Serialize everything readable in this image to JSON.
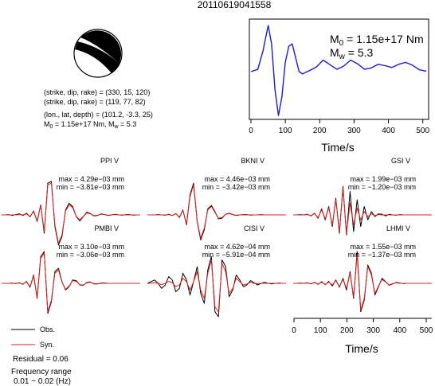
{
  "title": "20110619041558",
  "source": {
    "m0_label": "M",
    "m0_sub": "0",
    "m0_value": " = 1.15e+17 Nm",
    "mw_label": "M",
    "mw_sub": "w",
    "mw_value": " = 5.3",
    "xlabel": "Time/s",
    "xticks": [
      "0",
      "100",
      "200",
      "300",
      "400",
      "500"
    ]
  },
  "mechanism": {
    "line1": "(strike, dip, rake) = (330, 15, 120)",
    "line2": "(strike, dip, rake) = (119, 77, 82)",
    "line3": "(lon., lat, depth) = (101.2, -3.3, 25)",
    "line4_m0": "M",
    "line4_m0_sub": "0",
    "line4_rest": " = 1.15e+17 Nm, M",
    "line4_mw_sub": "w",
    "line4_end": " = 5.3"
  },
  "waveform_xlabel": "Time/s",
  "waveform_xticks": [
    "0",
    "100",
    "200",
    "300",
    "400",
    "500"
  ],
  "legend": {
    "obs": "Obs.",
    "syn": "Syn.",
    "residual": "Residual = 0.06",
    "freq_title": "Frequency range",
    "freq_range": "0.01 − 0.02 (Hz)"
  },
  "colors": {
    "source": "#1a1adb",
    "observed": "#000000",
    "synthetic": "#e02020"
  },
  "chart_data": [
    {
      "type": "line",
      "name": "source_time_function",
      "xlim": [
        0,
        510
      ],
      "x": [
        0,
        20,
        35,
        50,
        60,
        70,
        80,
        90,
        100,
        110,
        120,
        130,
        140,
        150,
        170,
        190,
        210,
        230,
        250,
        270,
        290,
        310,
        330,
        350,
        370,
        390,
        410,
        430,
        450,
        470,
        490,
        510
      ],
      "y": [
        0.0,
        0.05,
        0.45,
        1.0,
        0.6,
        -0.4,
        -0.95,
        -0.55,
        0.2,
        0.55,
        0.6,
        0.3,
        0.0,
        -0.05,
        0.02,
        0.1,
        0.25,
        0.15,
        0.05,
        0.12,
        0.25,
        0.17,
        0.05,
        0.08,
        0.16,
        0.13,
        0.09,
        0.16,
        0.2,
        0.14,
        0.04,
        0.01
      ]
    },
    {
      "type": "line",
      "stations": [
        {
          "name": "PPI V",
          "max": "max = 4.29e−03 mm",
          "min": "min = −3.81e−03 mm",
          "obs": [
            0,
            0,
            0.01,
            -0.02,
            0.01,
            0.03,
            -0.02,
            0.05,
            -0.06,
            0.12,
            -0.2,
            0.3,
            -0.55,
            0.95,
            1.0,
            -0.35,
            -0.9,
            -0.65,
            0.15,
            0.35,
            0.25,
            -0.05,
            -0.18,
            -0.05,
            0.08,
            0.04,
            -0.03,
            -0.02,
            0.03,
            0.01,
            -0.02,
            0,
            0.02,
            0,
            -0.01,
            0.01,
            0.01,
            -0.01,
            0,
            0
          ],
          "syn": [
            0,
            0,
            0,
            0,
            0,
            0.01,
            0,
            0.03,
            -0.05,
            0.1,
            -0.18,
            0.28,
            -0.5,
            0.9,
            0.95,
            -0.3,
            -0.85,
            -0.6,
            0.12,
            0.3,
            0.22,
            -0.04,
            -0.15,
            -0.04,
            0.06,
            0.03,
            -0.02,
            -0.01,
            0.02,
            0.01,
            -0.01,
            0,
            0.01,
            0,
            0,
            0,
            0,
            0,
            0,
            0
          ]
        },
        {
          "name": "BKNI V",
          "max": "max = 4.46e−03 mm",
          "min": "min = −3.42e−03 mm",
          "obs": [
            0,
            0,
            0,
            0.01,
            0,
            -0.01,
            0.02,
            -0.02,
            0.04,
            -0.08,
            0.15,
            -0.3,
            0.6,
            0.95,
            -0.2,
            -0.75,
            -0.45,
            0.18,
            0.28,
            0.1,
            -0.12,
            -0.1,
            0.02,
            0.05,
            0.01,
            -0.02,
            0,
            0.01,
            0.01,
            -0.01,
            0,
            0,
            0.01,
            0,
            0,
            0,
            0,
            0,
            0,
            0
          ],
          "syn": [
            0,
            0,
            0,
            0,
            0,
            0,
            0.01,
            -0.02,
            0.04,
            -0.07,
            0.14,
            -0.28,
            0.55,
            0.9,
            -0.18,
            -0.7,
            -0.4,
            0.15,
            0.25,
            0.08,
            -0.1,
            -0.08,
            0.02,
            0.04,
            0.01,
            -0.01,
            0,
            0,
            0,
            0,
            0,
            0,
            0,
            0,
            0,
            0,
            0,
            0,
            0,
            0
          ]
        },
        {
          "name": "GSI V",
          "max": "max = 1.99e−03 mm",
          "min": "min = −1.20e−03 mm",
          "obs": [
            0,
            0,
            0.01,
            0,
            0.02,
            -0.03,
            0.05,
            -0.1,
            0.18,
            -0.15,
            0.25,
            -0.35,
            0.5,
            -0.55,
            0.85,
            -0.6,
            0.7,
            -0.5,
            0.45,
            -0.35,
            0.25,
            -0.15,
            0.1,
            -0.05,
            0.03,
            0.02,
            -0.03,
            0.02,
            0,
            -0.01,
            0.01,
            0,
            0,
            0,
            0,
            0,
            0,
            0,
            0,
            0
          ],
          "syn": [
            0,
            0,
            0,
            0,
            0.01,
            -0.02,
            0.04,
            -0.08,
            0.15,
            -0.12,
            0.22,
            -0.3,
            0.45,
            -0.5,
            0.8,
            -0.55,
            0.35,
            -0.3,
            0.2,
            -0.15,
            0.1,
            -0.05,
            0.03,
            -0.02,
            0.01,
            0,
            0,
            0,
            0,
            0,
            0,
            0,
            0,
            0,
            0,
            0,
            0,
            0,
            0,
            0
          ]
        },
        {
          "name": "PMBI V",
          "max": "max = 3.10e−03 mm",
          "min": "min = −3.06e−03 mm",
          "obs": [
            0,
            0,
            0,
            0.01,
            -0.01,
            0.02,
            -0.03,
            0.06,
            -0.12,
            0.25,
            -0.45,
            0.8,
            0.95,
            -0.9,
            -0.55,
            0.35,
            0.45,
            0.05,
            -0.2,
            -0.1,
            0.1,
            0.08,
            -0.05,
            -0.06,
            0.03,
            0.04,
            -0.02,
            -0.02,
            0.01,
            0.01,
            0,
            0,
            0,
            0,
            0,
            0,
            0,
            0,
            0,
            0
          ],
          "syn": [
            0,
            0,
            0,
            0,
            0,
            0.01,
            -0.02,
            0.05,
            -0.1,
            0.22,
            -0.42,
            0.75,
            0.9,
            -0.85,
            -0.5,
            0.3,
            0.4,
            0.04,
            -0.18,
            -0.08,
            0.08,
            0.06,
            -0.04,
            -0.05,
            0.02,
            0.03,
            -0.01,
            -0.01,
            0,
            0,
            0,
            0,
            0,
            0,
            0,
            0,
            0,
            0,
            0,
            0
          ]
        },
        {
          "name": "CISI V",
          "max": "max = 4.62e−04 mm",
          "min": "min = −5.91e−04 mm",
          "obs": [
            0,
            0.05,
            0.1,
            0,
            -0.15,
            -0.05,
            0.2,
            0.1,
            -0.25,
            -0.15,
            0.3,
            0.1,
            -0.35,
            0.05,
            0.5,
            -0.3,
            -0.6,
            0.4,
            0.8,
            -0.85,
            -1.0,
            0.7,
            0.5,
            -0.4,
            -0.2,
            0.25,
            0.1,
            -0.1,
            -0.05,
            0.08,
            0.02,
            -0.05,
            0,
            0.03,
            0,
            -0.02,
            0,
            0.01,
            0,
            0
          ],
          "syn": [
            0,
            0,
            0.02,
            0,
            -0.04,
            0,
            0.06,
            0.02,
            -0.1,
            -0.05,
            0.15,
            0.05,
            -0.2,
            0.05,
            0.35,
            -0.2,
            -0.45,
            0.3,
            0.7,
            -0.7,
            -0.85,
            0.6,
            0.35,
            -0.3,
            -0.15,
            0.15,
            0.05,
            -0.05,
            -0.02,
            0.03,
            0,
            -0.01,
            0,
            0,
            0,
            0,
            0,
            0,
            0,
            0
          ]
        },
        {
          "name": "LHMI V",
          "max": "max = 1.55e−03 mm",
          "min": "min = −1.37e−03 mm",
          "obs": [
            0,
            0,
            0.01,
            0,
            0.02,
            -0.02,
            0.03,
            -0.03,
            0.05,
            -0.04,
            0.06,
            -0.08,
            0.1,
            -0.12,
            0.15,
            -0.2,
            0.35,
            -0.45,
            0.95,
            -0.85,
            -0.5,
            0.55,
            0.3,
            -0.35,
            -0.1,
            0.15,
            0.05,
            -0.06,
            -0.02,
            0.03,
            0.01,
            -0.01,
            0,
            0,
            0,
            0,
            0,
            0,
            0,
            0
          ],
          "syn": [
            0,
            0,
            0,
            0,
            0.01,
            -0.01,
            0.02,
            -0.02,
            0.03,
            -0.03,
            0.04,
            -0.05,
            0.08,
            -0.1,
            0.12,
            -0.15,
            0.3,
            -0.4,
            0.85,
            -0.8,
            -0.45,
            0.5,
            0.25,
            -0.3,
            -0.08,
            0.12,
            0.04,
            -0.05,
            -0.01,
            0.02,
            0,
            0,
            0,
            0,
            0,
            0,
            0,
            0,
            0,
            0
          ]
        }
      ]
    }
  ]
}
